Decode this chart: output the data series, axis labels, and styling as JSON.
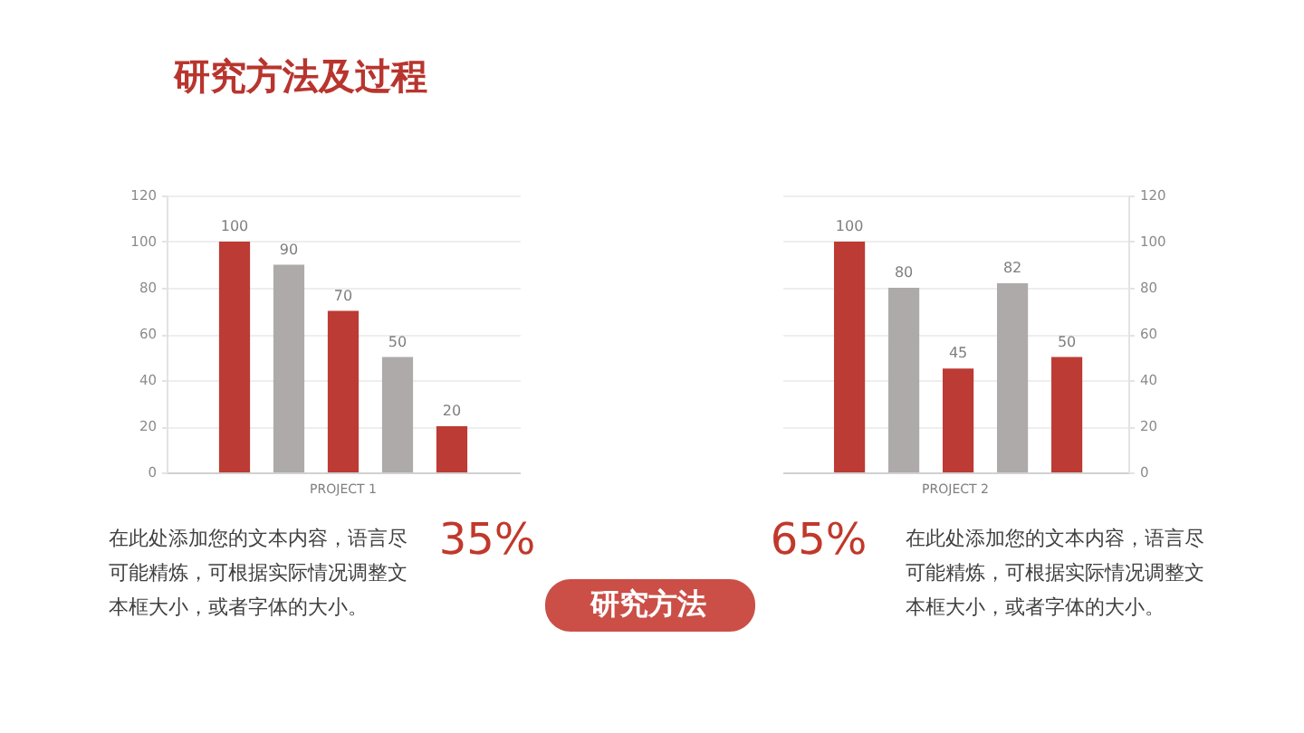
{
  "chart_data": [
    {
      "type": "bar",
      "categories": [
        "PROJECT 1"
      ],
      "series": [
        {
          "color": "#bc3b34",
          "values": [
            100
          ]
        },
        {
          "color": "#aeaaaa",
          "values": [
            90
          ]
        },
        {
          "color": "#bc3b34",
          "values": [
            70
          ]
        },
        {
          "color": "#aeaaaa",
          "values": [
            50
          ]
        },
        {
          "color": "#bc3b34",
          "values": [
            20
          ]
        }
      ],
      "ylim": [
        0,
        120
      ],
      "yticks": [
        0,
        20,
        40,
        60,
        80,
        100,
        120
      ],
      "grid": "y",
      "data_labels": true,
      "annotations": [
        "在此处添加您的文本内容，语言尽可能精炼，可根据实际情况调整文本框大小，或者字体的大小。",
        "35%"
      ]
    },
    {
      "type": "bar",
      "categories": [
        "PROJECT 2"
      ],
      "series": [
        {
          "color": "#bc3b34",
          "values": [
            100
          ]
        },
        {
          "color": "#aeaaaa",
          "values": [
            80
          ]
        },
        {
          "color": "#bc3b34",
          "values": [
            45
          ]
        },
        {
          "color": "#aeaaaa",
          "values": [
            82
          ]
        },
        {
          "color": "#bc3b34",
          "values": [
            50
          ]
        }
      ],
      "ylim": [
        0,
        120
      ],
      "yticks": [
        0,
        20,
        40,
        60,
        80,
        100,
        120
      ],
      "grid": "y",
      "data_labels": true,
      "annotations": [
        "65%",
        "在此处添加您的文本内容，语言尽可能精炼，可根据实际情况调整文本框大小，或者字体的大小。"
      ]
    },
    {
      "type": "other",
      "title": "研究方法及过程",
      "annotations": [
        "研究方法"
      ]
    }
  ]
}
